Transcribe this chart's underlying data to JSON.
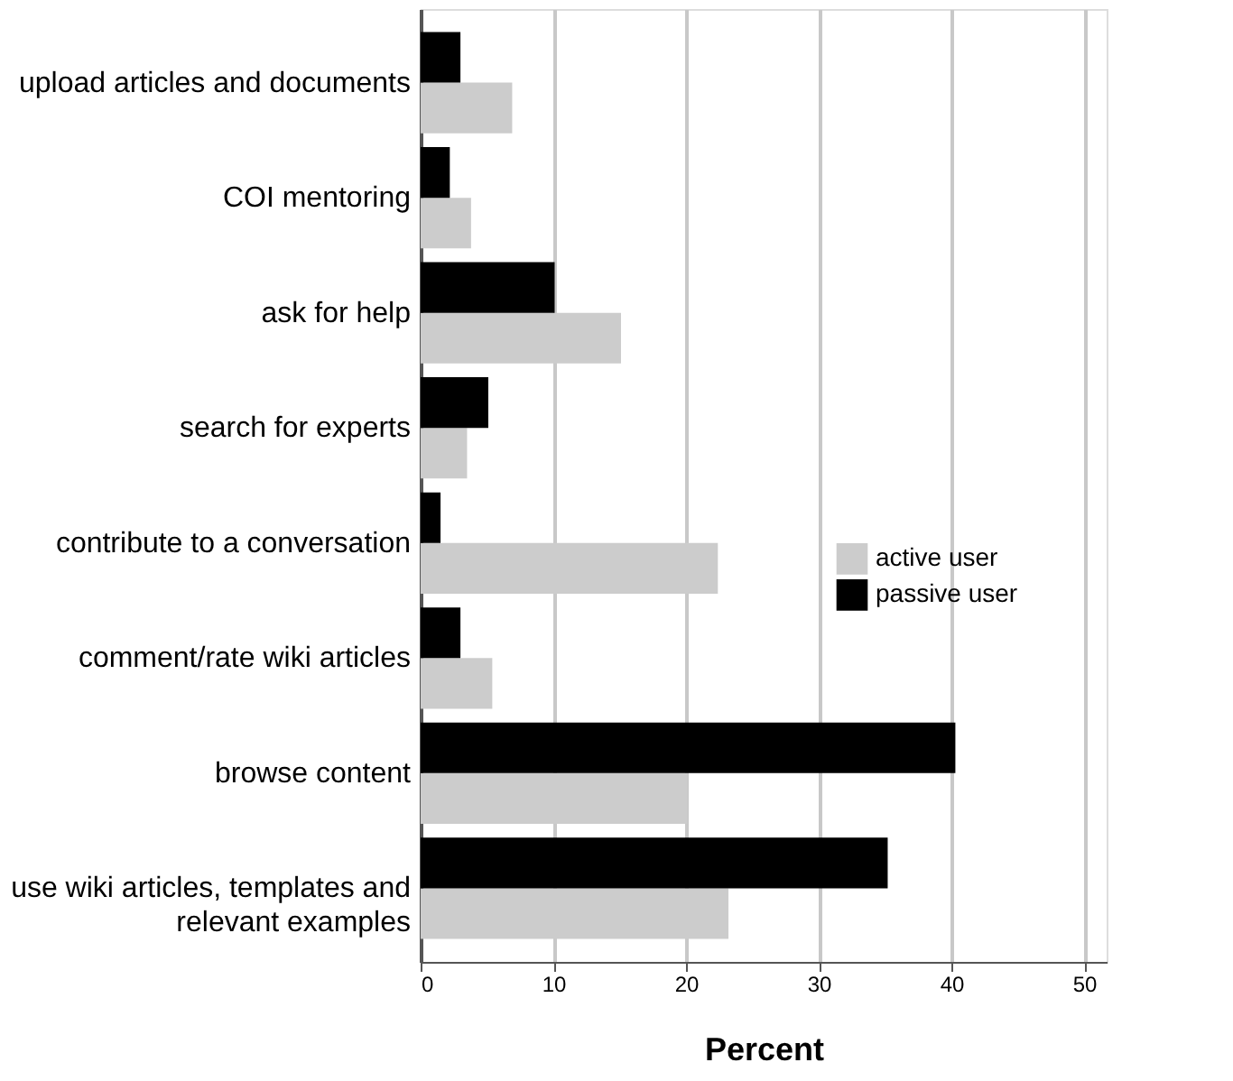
{
  "chart_data": {
    "type": "bar",
    "orientation": "horizontal",
    "xlabel": "Percent",
    "categories": [
      "upload articles and documents",
      "COI mentoring",
      "ask for help",
      "search for experts",
      "contribute to a conversation",
      "comment/rate wiki articles",
      "browse content",
      "use wiki articles, templates and relevant examples"
    ],
    "series": [
      {
        "name": "active user",
        "color": "#cccccc",
        "values": [
          6.9,
          3.8,
          15.1,
          3.5,
          22.4,
          5.4,
          20.1,
          23.2
        ]
      },
      {
        "name": "passive user",
        "color": "#000000",
        "values": [
          3.0,
          2.2,
          10.1,
          5.1,
          1.5,
          3.0,
          40.3,
          35.2
        ]
      }
    ],
    "xlim": [
      0,
      51.7
    ],
    "xticks": [
      0,
      10,
      20,
      30,
      40,
      50
    ],
    "grid": "x",
    "legend": "right"
  }
}
